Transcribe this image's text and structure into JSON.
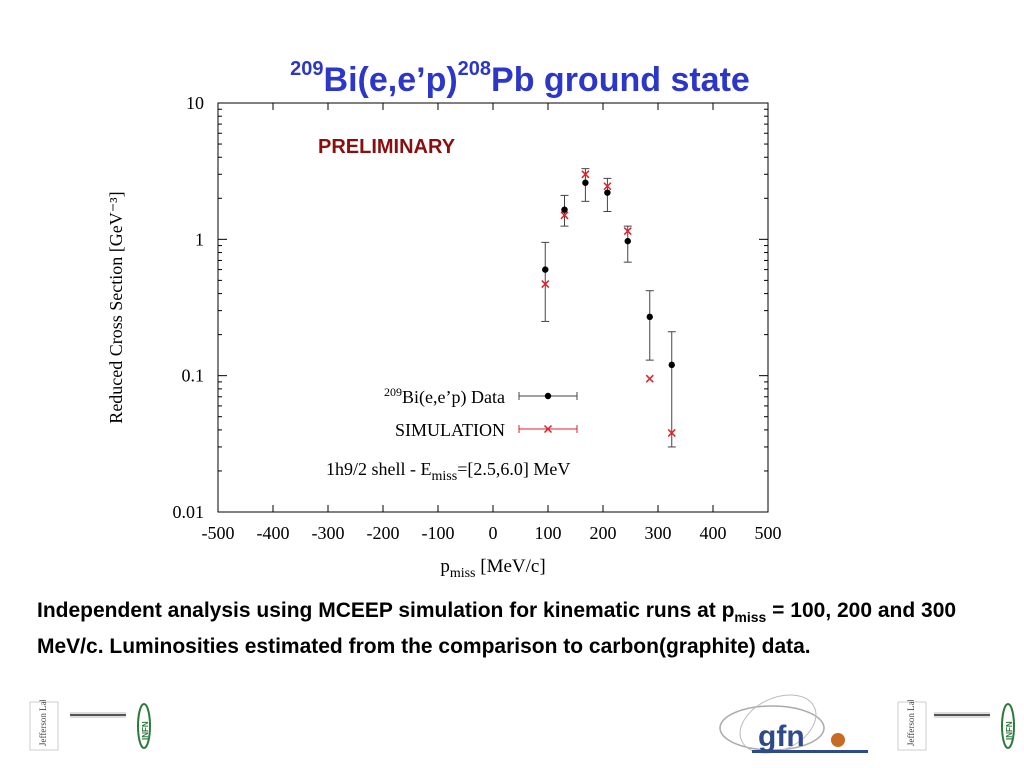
{
  "slide": {
    "title": {
      "sup1": "209",
      "part1": "Bi(e,e’p)",
      "sup2": "208",
      "part2": "Pb ground state"
    },
    "preliminary": "PRELIMINARY",
    "caption": {
      "part1": "Independent analysis using MCEEP simulation for  kinematic runs at p",
      "sub": "miss",
      "part2": " = 100, 200 and 300 MeV/c. Luminosities estimated from the comparison to carbon(graphite) data."
    },
    "logos": [
      {
        "name": "jefferson-lab-logo",
        "text": "Jefferson Lab",
        "color": "#444444"
      },
      {
        "name": "infn-logo",
        "text": "INFN",
        "color": "#2a7a3a"
      },
      {
        "name": "gfn-logo",
        "text": "gfn",
        "color": "#2f4a8a"
      }
    ]
  },
  "chart_data": {
    "type": "scatter",
    "ylabel": "Reduced Cross Section [GeV⁻³]",
    "xlabel": {
      "main": "p",
      "sub": "miss",
      "rest": " [MeV/c]"
    },
    "xlim": [
      -500,
      500
    ],
    "ylim": [
      0.01,
      10
    ],
    "yscale": "log",
    "xticks": [
      -500,
      -400,
      -300,
      -200,
      -100,
      0,
      100,
      200,
      300,
      400,
      500
    ],
    "yticks": [
      {
        "value": 0.01,
        "label": "0.01"
      },
      {
        "value": 0.1,
        "label": "0.1"
      },
      {
        "value": 1,
        "label": "1"
      },
      {
        "value": 10,
        "label": "10"
      }
    ],
    "grid": false,
    "legend_position": "bottom-center",
    "annotation": {
      "pre": "1h9/2 shell - E",
      "sub": "miss",
      "post": "=[2.5,6.0] MeV"
    },
    "series": [
      {
        "name": "Bi(e,e’p) Data",
        "name_sup": "209",
        "marker": "dot",
        "color": "#000000",
        "errcolor": "#444444",
        "points": [
          {
            "x": 95,
            "y": 0.6,
            "ylo": 0.25,
            "yhi": 0.95
          },
          {
            "x": 130,
            "y": 1.65,
            "ylo": 1.25,
            "yhi": 2.1
          },
          {
            "x": 168,
            "y": 2.6,
            "ylo": 1.9,
            "yhi": 3.3
          },
          {
            "x": 208,
            "y": 2.2,
            "ylo": 1.6,
            "yhi": 2.8
          },
          {
            "x": 245,
            "y": 0.97,
            "ylo": 0.68,
            "yhi": 1.25
          },
          {
            "x": 285,
            "y": 0.27,
            "ylo": 0.13,
            "yhi": 0.42
          },
          {
            "x": 325,
            "y": 0.12,
            "ylo": 0.03,
            "yhi": 0.21
          }
        ]
      },
      {
        "name": "SIMULATION",
        "marker": "cross",
        "color": "#e0202a",
        "errcolor": "#e0202a",
        "points": [
          {
            "x": 95,
            "y": 0.47
          },
          {
            "x": 130,
            "y": 1.5
          },
          {
            "x": 168,
            "y": 3.0
          },
          {
            "x": 208,
            "y": 2.45
          },
          {
            "x": 245,
            "y": 1.15
          },
          {
            "x": 285,
            "y": 0.095
          },
          {
            "x": 325,
            "y": 0.038
          }
        ]
      }
    ]
  }
}
